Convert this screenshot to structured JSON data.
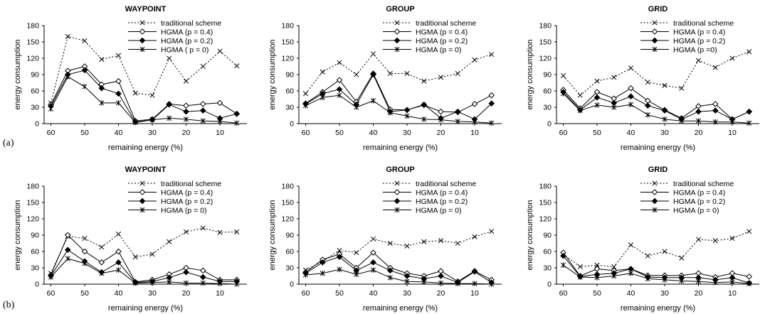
{
  "figure": {
    "row_labels": [
      "(a)",
      "(b)"
    ]
  },
  "chart_data": [
    {
      "type": "line",
      "row": 0,
      "col": 0,
      "title": "WAYPOINT",
      "xlabel": "remaining energy (%)",
      "ylabel": "energy consumption",
      "xlim": [
        62,
        2
      ],
      "ylim": [
        0,
        180
      ],
      "xticks": [
        60,
        50,
        40,
        30,
        20,
        10
      ],
      "yticks": [
        0,
        30,
        60,
        90,
        120,
        150,
        180
      ],
      "legend_position": "top-right",
      "x": [
        60,
        55,
        50,
        45,
        40,
        35,
        30,
        25,
        20,
        15,
        10,
        5
      ],
      "series": [
        {
          "name": "traditional scheme",
          "style": "dotted",
          "marker": "x",
          "values": [
            38,
            160,
            152,
            118,
            125,
            56,
            52,
            120,
            78,
            105,
            133,
            106
          ]
        },
        {
          "name": "HGMA (p = 0.4)",
          "style": "solid",
          "marker": "diamond-open",
          "values": [
            35,
            97,
            105,
            72,
            78,
            5,
            8,
            36,
            33,
            36,
            38,
            18
          ]
        },
        {
          "name": "HGMA (p = 0.2)",
          "style": "solid",
          "marker": "diamond-filled",
          "values": [
            32,
            90,
            98,
            65,
            55,
            3,
            7,
            35,
            22,
            24,
            10,
            18
          ]
        },
        {
          "name": "HGMA ( p = 0)",
          "style": "solid",
          "marker": "star",
          "values": [
            27,
            86,
            68,
            38,
            38,
            2,
            7,
            10,
            8,
            5,
            4,
            1
          ]
        }
      ]
    },
    {
      "type": "line",
      "row": 0,
      "col": 1,
      "title": "GROUP",
      "xlabel": "remaining energy (%)",
      "ylabel": "energy consumption",
      "xlim": [
        62,
        2
      ],
      "ylim": [
        0,
        180
      ],
      "xticks": [
        60,
        50,
        40,
        30,
        20,
        10
      ],
      "yticks": [
        0,
        30,
        60,
        90,
        120,
        150,
        180
      ],
      "legend_position": "top-right",
      "x": [
        60,
        55,
        50,
        45,
        40,
        35,
        30,
        25,
        20,
        15,
        10,
        5
      ],
      "series": [
        {
          "name": "traditional scheme",
          "style": "dotted",
          "marker": "x",
          "values": [
            55,
            95,
            112,
            90,
            128,
            92,
            92,
            78,
            85,
            92,
            117,
            127
          ]
        },
        {
          "name": "HGMA (p = 0.4)",
          "style": "solid",
          "marker": "diamond-open",
          "values": [
            37,
            58,
            80,
            40,
            92,
            26,
            25,
            34,
            22,
            21,
            36,
            52
          ]
        },
        {
          "name": "HGMA (p = 0.2)",
          "style": "solid",
          "marker": "diamond-filled",
          "values": [
            36,
            55,
            63,
            35,
            90,
            22,
            25,
            35,
            10,
            22,
            8,
            37
          ]
        },
        {
          "name": "HGMA (p = 0)",
          "style": "solid",
          "marker": "star",
          "values": [
            33,
            48,
            52,
            30,
            42,
            20,
            14,
            8,
            7,
            4,
            3,
            1
          ]
        }
      ]
    },
    {
      "type": "line",
      "row": 0,
      "col": 2,
      "title": "GRID",
      "xlabel": "remaining energy (%)",
      "ylabel": "energy consumption",
      "xlim": [
        62,
        2
      ],
      "ylim": [
        0,
        180
      ],
      "xticks": [
        60,
        50,
        40,
        30,
        20,
        10
      ],
      "yticks": [
        0,
        30,
        60,
        90,
        120,
        150,
        180
      ],
      "legend_position": "top-right",
      "x": [
        60,
        55,
        50,
        45,
        40,
        35,
        30,
        25,
        20,
        15,
        10,
        5
      ],
      "series": [
        {
          "name": "traditional scheme",
          "style": "dotted",
          "marker": "x",
          "values": [
            88,
            52,
            78,
            85,
            102,
            76,
            70,
            65,
            116,
            103,
            120,
            132
          ]
        },
        {
          "name": "HGMA (p = 0.4)",
          "style": "solid",
          "marker": "diamond-open",
          "values": [
            62,
            28,
            58,
            46,
            65,
            42,
            25,
            10,
            32,
            36,
            8,
            22
          ]
        },
        {
          "name": "HGMA (p = 0.2)",
          "style": "solid",
          "marker": "diamond-filled",
          "values": [
            58,
            25,
            48,
            38,
            50,
            33,
            24,
            8,
            22,
            24,
            8,
            22
          ]
        },
        {
          "name": "HGMA (p  =0)",
          "style": "solid",
          "marker": "star",
          "values": [
            55,
            24,
            34,
            30,
            35,
            16,
            8,
            5,
            5,
            3,
            3,
            1
          ]
        }
      ]
    },
    {
      "type": "line",
      "row": 1,
      "col": 0,
      "title": "WAYPOINT",
      "xlabel": "remaining energy (%)",
      "ylabel": "energy consumption",
      "xlim": [
        62,
        2
      ],
      "ylim": [
        0,
        180
      ],
      "xticks": [
        60,
        50,
        40,
        30,
        20,
        10
      ],
      "yticks": [
        0,
        30,
        60,
        90,
        120,
        150,
        180
      ],
      "legend_position": "top-right",
      "x": [
        60,
        55,
        50,
        45,
        40,
        35,
        30,
        25,
        20,
        15,
        10,
        5
      ],
      "series": [
        {
          "name": "traditional scheme",
          "style": "dotted",
          "marker": "x",
          "values": [
            20,
            88,
            84,
            68,
            92,
            50,
            55,
            78,
            96,
            103,
            95,
            96
          ]
        },
        {
          "name": "HGMA (p = 0.4)",
          "style": "solid",
          "marker": "diamond-open",
          "values": [
            17,
            90,
            60,
            40,
            60,
            4,
            8,
            18,
            30,
            25,
            8,
            8
          ]
        },
        {
          "name": "HGMA (p = 0.2)",
          "style": "solid",
          "marker": "diamond-filled",
          "values": [
            15,
            63,
            42,
            22,
            40,
            3,
            5,
            12,
            22,
            13,
            5,
            5
          ]
        },
        {
          "name": "HGMA (p = 0)",
          "style": "solid",
          "marker": "star",
          "values": [
            13,
            47,
            38,
            20,
            26,
            2,
            3,
            4,
            2,
            2,
            1,
            0
          ]
        }
      ]
    },
    {
      "type": "line",
      "row": 1,
      "col": 1,
      "title": "GROUP",
      "xlabel": "remaining energy (%)",
      "ylabel": "energy consumption",
      "xlim": [
        62,
        2
      ],
      "ylim": [
        0,
        180
      ],
      "xticks": [
        60,
        50,
        40,
        30,
        20,
        10
      ],
      "yticks": [
        0,
        30,
        60,
        90,
        120,
        150,
        180
      ],
      "legend_position": "top-right",
      "x": [
        60,
        55,
        50,
        45,
        40,
        35,
        30,
        25,
        20,
        15,
        10,
        5
      ],
      "series": [
        {
          "name": "traditional scheme",
          "style": "dotted",
          "marker": "x",
          "values": [
            26,
            42,
            62,
            58,
            83,
            75,
            70,
            78,
            80,
            75,
            87,
            97
          ]
        },
        {
          "name": "HGMA (p = 0.4)",
          "style": "solid",
          "marker": "diamond-open",
          "values": [
            22,
            45,
            55,
            30,
            58,
            30,
            20,
            15,
            24,
            5,
            24,
            8
          ]
        },
        {
          "name": "HGMA (p = 0.2)",
          "style": "solid",
          "marker": "diamond-filled",
          "values": [
            20,
            40,
            50,
            25,
            40,
            25,
            15,
            10,
            15,
            3,
            23,
            3
          ]
        },
        {
          "name": "HGMA (p = 0)",
          "style": "solid",
          "marker": "star",
          "values": [
            17,
            20,
            27,
            18,
            26,
            12,
            5,
            4,
            2,
            1,
            1,
            0
          ]
        }
      ]
    },
    {
      "type": "line",
      "row": 1,
      "col": 2,
      "title": "GRID",
      "xlabel": "remaining energy (%)",
      "ylabel": "energy consumption",
      "xlim": [
        62,
        2
      ],
      "ylim": [
        0,
        180
      ],
      "xticks": [
        60,
        50,
        40,
        30,
        20,
        10
      ],
      "yticks": [
        0,
        30,
        60,
        90,
        120,
        150,
        180
      ],
      "legend_position": "top-right",
      "x": [
        60,
        55,
        50,
        45,
        40,
        35,
        30,
        25,
        20,
        15,
        10,
        5
      ],
      "series": [
        {
          "name": "traditional scheme",
          "style": "dotted",
          "marker": "x",
          "values": [
            55,
            32,
            35,
            32,
            72,
            52,
            60,
            48,
            82,
            80,
            84,
            97
          ]
        },
        {
          "name": "HGMA (p = 0.4)",
          "style": "solid",
          "marker": "diamond-open",
          "values": [
            58,
            15,
            28,
            25,
            28,
            16,
            16,
            16,
            20,
            13,
            20,
            14
          ]
        },
        {
          "name": "HGMA (p = 0.2)",
          "style": "solid",
          "marker": "diamond-filled",
          "values": [
            52,
            14,
            18,
            20,
            28,
            13,
            12,
            12,
            12,
            8,
            12,
            2
          ]
        },
        {
          "name": "HGMA (p = 0)",
          "style": "solid",
          "marker": "star",
          "values": [
            35,
            13,
            12,
            15,
            20,
            10,
            8,
            6,
            5,
            3,
            4,
            1
          ]
        }
      ]
    }
  ]
}
